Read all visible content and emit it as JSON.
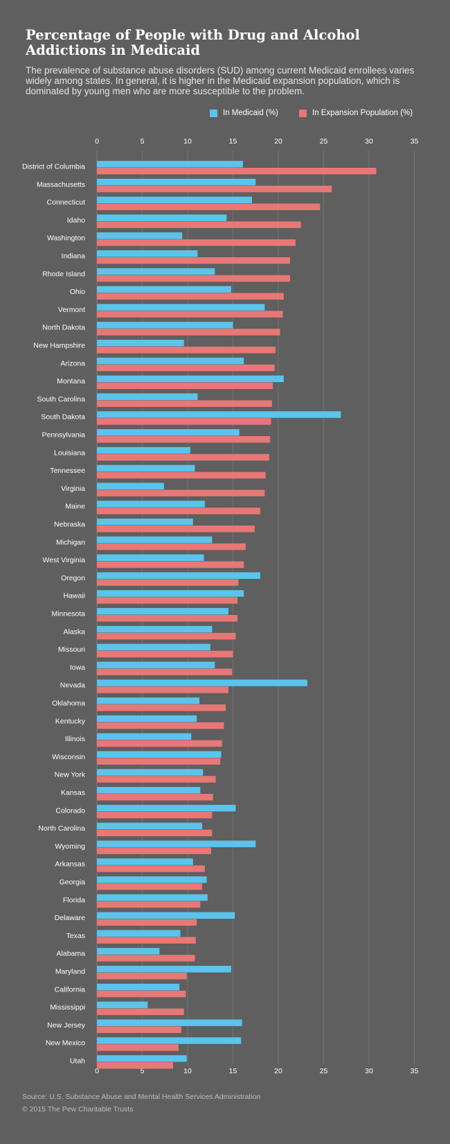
{
  "header": {
    "title": "Percentage of People with Drug and Alcohol Addictions in Medicaid",
    "subtitle": "The prevalence of substance abuse disorders (SUD) among current Medicaid enrollees varies widely among states. In general, it is higher in the Medicaid expansion population, which is dominated by young men who are more susceptible to the problem."
  },
  "legend": [
    {
      "label": "In Medicaid (%)",
      "color": "#5bc4ec"
    },
    {
      "label": "In Expansion Population (%)",
      "color": "#e77876"
    }
  ],
  "footer": {
    "source": "Source: U.S. Substance Abuse and Mental Health Services Administration",
    "copyright": "© 2015 The Pew Charitable Trusts"
  },
  "colors": {
    "background": "#5e5f5e",
    "medicaid": "#5bc4ec",
    "expansion": "#e77876",
    "gridline": "#6f706f"
  },
  "chart_data": {
    "type": "bar",
    "orientation": "horizontal",
    "xlim": [
      0,
      35
    ],
    "ticks": [
      0,
      5,
      10,
      15,
      20,
      25,
      30,
      35
    ],
    "grid": true,
    "legend_position": "top-right",
    "categories": [
      "District of Columbia",
      "Massachusetts",
      "Connecticut",
      "Idaho",
      "Washington",
      "Indiana",
      "Rhode Island",
      "Ohio",
      "Vermont",
      "North Dakota",
      "New Hampshire",
      "Arizona",
      "Montana",
      "South Carolina",
      "South Dakota",
      "Pennsylvania",
      "Louisiana",
      "Tennessee",
      "Virginia",
      "Maine",
      "Nebraska",
      "Michigan",
      "West Virginia",
      "Oregon",
      "Hawaii",
      "Minnesota",
      "Alaska",
      "Missouri",
      "Iowa",
      "Nevada",
      "Oklahoma",
      "Kentucky",
      "Illinois",
      "Wisconsin",
      "New York",
      "Kansas",
      "Colorado",
      "North Carolina",
      "Wyoming",
      "Arkansas",
      "Georgia",
      "Florida",
      "Delaware",
      "Texas",
      "Alabama",
      "Maryland",
      "California",
      "Mississippi",
      "New Jersey",
      "New Mexico",
      "Utah"
    ],
    "series": [
      {
        "name": "In Medicaid (%)",
        "values": [
          16.1,
          17.5,
          17.1,
          14.3,
          9.4,
          11.1,
          13.0,
          14.8,
          18.5,
          15.0,
          9.6,
          16.2,
          20.6,
          11.1,
          26.9,
          15.7,
          10.3,
          10.8,
          7.4,
          11.9,
          10.6,
          12.7,
          11.8,
          18.0,
          16.2,
          14.5,
          12.7,
          12.5,
          13.0,
          23.2,
          11.3,
          11.0,
          10.4,
          13.7,
          11.7,
          11.4,
          15.3,
          11.6,
          17.5,
          10.6,
          12.1,
          12.2,
          15.2,
          9.2,
          6.9,
          14.8,
          9.1,
          5.6,
          16.0,
          15.9,
          9.9
        ]
      },
      {
        "name": "In Expansion Population (%)",
        "values": [
          30.8,
          25.9,
          24.6,
          22.5,
          21.9,
          21.3,
          21.3,
          20.6,
          20.5,
          20.2,
          19.7,
          19.6,
          19.4,
          19.3,
          19.2,
          19.1,
          19.0,
          18.6,
          18.5,
          18.0,
          17.4,
          16.4,
          16.2,
          15.6,
          15.5,
          15.5,
          15.3,
          15.0,
          14.9,
          14.5,
          14.2,
          14.0,
          13.8,
          13.6,
          13.1,
          12.8,
          12.7,
          12.7,
          12.6,
          11.9,
          11.6,
          11.4,
          11.0,
          10.9,
          10.8,
          9.9,
          9.8,
          9.6,
          9.3,
          9.0,
          8.4
        ]
      }
    ]
  }
}
